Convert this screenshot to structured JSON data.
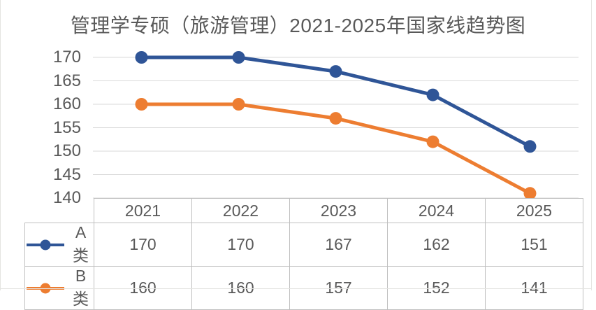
{
  "chart_data": {
    "type": "line",
    "title": "管理学专硕（旅游管理）2021-2025年国家线趋势图",
    "categories": [
      "2021",
      "2022",
      "2023",
      "2024",
      "2025"
    ],
    "series": [
      {
        "name": "A类",
        "values": [
          170,
          170,
          167,
          162,
          151
        ],
        "color": "#2F5597"
      },
      {
        "name": "B类",
        "values": [
          160,
          160,
          157,
          152,
          141
        ],
        "color": "#ED7D31"
      }
    ],
    "ylim": [
      140,
      170
    ],
    "yticks": [
      170,
      165,
      160,
      155,
      150,
      145,
      140
    ],
    "grid": "horizontal-only",
    "marker": "circle",
    "legend_position": "data-table-left",
    "data_table_shown": true
  },
  "colors": {
    "series_a": "#2F5597",
    "series_b": "#ED7D31",
    "title_text": "#595959",
    "axis_text": "#595959",
    "table_text": "#595959",
    "gridline": "#D9D9D9",
    "table_border": "#BFBFBF",
    "frame_edge": "#E4E4E1",
    "background": "#FFFFFF"
  }
}
